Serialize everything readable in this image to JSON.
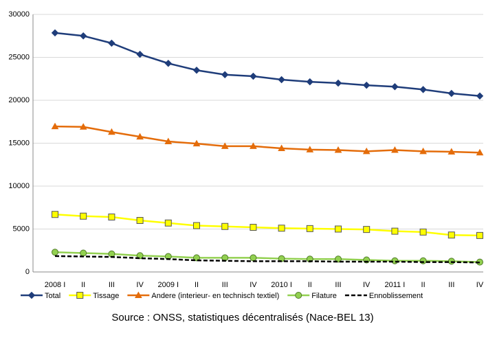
{
  "chart_data": {
    "type": "line",
    "categories": [
      "2008 I",
      "II",
      "III",
      "IV",
      "2009 I",
      "II",
      "III",
      "IV",
      "2010 I",
      "II",
      "III",
      "IV",
      "2011 I",
      "II",
      "III",
      "IV"
    ],
    "series": [
      {
        "name": "Total",
        "color": "#1f3d7a",
        "marker": "diamond",
        "values": [
          27850,
          27500,
          26650,
          25350,
          24300,
          23500,
          22980,
          22800,
          22400,
          22150,
          22000,
          21750,
          21580,
          21250,
          20800,
          20500
        ]
      },
      {
        "name": "Tissage",
        "color": "#ffff00",
        "marker": "square",
        "values": [
          6700,
          6500,
          6400,
          6000,
          5700,
          5400,
          5300,
          5200,
          5100,
          5050,
          5000,
          4950,
          4750,
          4650,
          4300,
          4250
        ]
      },
      {
        "name": "Andere (interieur- en technisch textiel)",
        "color": "#e46c0a",
        "marker": "triangle",
        "values": [
          16950,
          16900,
          16300,
          15750,
          15200,
          14950,
          14650,
          14650,
          14400,
          14250,
          14200,
          14050,
          14200,
          14050,
          14000,
          13900
        ]
      },
      {
        "name": "Filature",
        "color": "#92d050",
        "marker": "circle",
        "values": [
          2300,
          2200,
          2100,
          1900,
          1800,
          1650,
          1650,
          1650,
          1550,
          1500,
          1500,
          1400,
          1300,
          1300,
          1250,
          1150
        ]
      },
      {
        "name": "Ennoblissement",
        "color": "#000000",
        "marker": "none",
        "dashed": true,
        "values": [
          1850,
          1800,
          1750,
          1600,
          1500,
          1350,
          1300,
          1250,
          1250,
          1250,
          1200,
          1200,
          1200,
          1150,
          1150,
          1100
        ]
      }
    ],
    "ylim": [
      0,
      30000
    ],
    "yticks": [
      0,
      5000,
      10000,
      15000,
      20000,
      25000,
      30000
    ],
    "grid": true,
    "legend": "bottom",
    "source": "Source : ONSS, statistiques décentralisés (Nace-BEL 13)"
  }
}
